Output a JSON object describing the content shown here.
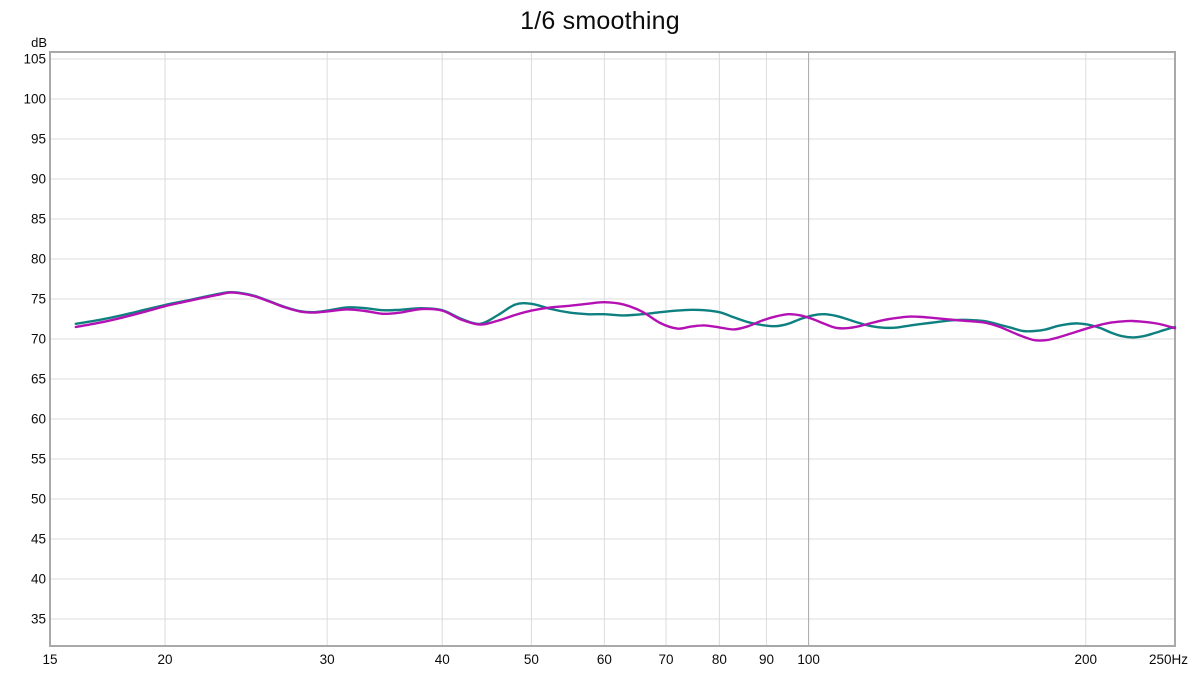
{
  "title": "1/6 smoothing",
  "colors": {
    "grid": "#dcdcdc",
    "grid_major": "#a8a8a8",
    "border": "#a9a9a9",
    "text": "#0b0b0b",
    "background": "#ffffff"
  },
  "chart_data": {
    "type": "line",
    "title": "1/6 smoothing",
    "grid": true,
    "legend": "none",
    "x_axis": {
      "scale": "log",
      "min": 15,
      "max": 250,
      "unit": "Hz",
      "ticks": [
        15,
        20,
        30,
        40,
        50,
        60,
        70,
        80,
        90,
        100,
        200,
        250
      ],
      "tick_labels": [
        "15",
        "20",
        "30",
        "40",
        "50",
        "60",
        "70",
        "80",
        "90",
        "100",
        "200",
        "250Hz"
      ],
      "major_gridline": 100
    },
    "y_axis": {
      "unit": "dB",
      "min": 35,
      "max": 105,
      "tick_step": 5,
      "ticks": [
        105,
        100,
        95,
        90,
        85,
        80,
        75,
        70,
        65,
        60,
        55,
        50,
        45,
        40,
        35
      ]
    },
    "x": [
      16,
      17,
      18,
      19,
      20,
      21,
      22,
      23,
      23.5,
      24,
      25,
      26,
      27,
      28,
      29,
      30,
      31.5,
      33,
      34.5,
      36,
      38,
      40,
      42,
      44,
      46,
      48,
      50,
      52.5,
      55,
      57.5,
      60,
      63,
      66,
      69,
      72,
      74.5,
      77,
      80,
      83,
      86,
      89,
      92,
      95,
      98,
      101,
      104,
      107,
      110,
      113.5,
      117,
      121,
      125,
      129,
      133,
      137.5,
      142,
      146.5,
      151,
      156,
      161,
      166,
      171,
      176,
      181,
      186,
      191,
      196,
      201,
      207,
      213,
      219,
      225,
      231,
      237,
      243,
      250
    ],
    "series": [
      {
        "name": "teal-trace",
        "color": "#0f8080",
        "values": [
          71.9,
          72.4,
          73.0,
          73.65,
          74.25,
          74.75,
          75.25,
          75.7,
          75.85,
          75.8,
          75.4,
          74.7,
          74.0,
          73.5,
          73.35,
          73.55,
          73.95,
          73.85,
          73.6,
          73.65,
          73.85,
          73.6,
          72.5,
          71.9,
          73.0,
          74.3,
          74.4,
          73.75,
          73.3,
          73.1,
          73.1,
          72.95,
          73.1,
          73.35,
          73.55,
          73.65,
          73.6,
          73.35,
          72.7,
          72.1,
          71.75,
          71.6,
          71.9,
          72.5,
          72.95,
          73.1,
          72.9,
          72.5,
          72.0,
          71.6,
          71.4,
          71.45,
          71.7,
          71.9,
          72.1,
          72.3,
          72.4,
          72.35,
          72.2,
          71.8,
          71.4,
          71.0,
          71.0,
          71.2,
          71.6,
          71.85,
          71.95,
          71.8,
          71.4,
          70.8,
          70.35,
          70.2,
          70.35,
          70.7,
          71.1,
          71.5
        ]
      },
      {
        "name": "magenta-trace",
        "color": "#b411b4",
        "values": [
          71.5,
          72.05,
          72.7,
          73.4,
          74.1,
          74.65,
          75.15,
          75.6,
          75.8,
          75.75,
          75.35,
          74.65,
          73.95,
          73.45,
          73.3,
          73.45,
          73.7,
          73.5,
          73.15,
          73.3,
          73.75,
          73.55,
          72.4,
          71.8,
          72.3,
          73.0,
          73.55,
          73.95,
          74.15,
          74.4,
          74.6,
          74.3,
          73.4,
          72.0,
          71.3,
          71.55,
          71.7,
          71.45,
          71.2,
          71.6,
          72.3,
          72.8,
          73.1,
          72.95,
          72.5,
          71.9,
          71.4,
          71.35,
          71.6,
          72.0,
          72.4,
          72.65,
          72.8,
          72.75,
          72.6,
          72.45,
          72.3,
          72.2,
          72.0,
          71.55,
          70.9,
          70.3,
          69.85,
          69.85,
          70.15,
          70.55,
          70.95,
          71.35,
          71.75,
          72.05,
          72.2,
          72.25,
          72.15,
          72.0,
          71.75,
          71.35
        ]
      }
    ]
  }
}
